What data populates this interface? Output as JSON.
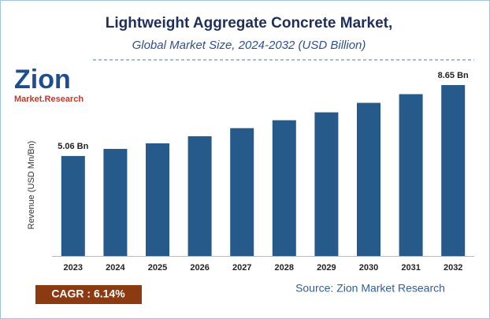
{
  "chart_data": {
    "type": "bar",
    "title": "Lightweight Aggregate Concrete Market,",
    "subtitle": "Global Market Size, 2024-2032 (USD Billion)",
    "y_label": "Revenue (USD Mn/Bn)",
    "categories": [
      "2023",
      "2024",
      "2025",
      "2026",
      "2027",
      "2028",
      "2029",
      "2030",
      "2031",
      "2032"
    ],
    "values": [
      5.06,
      5.42,
      5.7,
      6.06,
      6.47,
      6.87,
      7.27,
      7.75,
      8.19,
      8.65
    ],
    "value_labels": [
      "5.06 Bn",
      null,
      null,
      null,
      null,
      null,
      null,
      null,
      null,
      "8.65 Bn"
    ],
    "color": "#255a8a",
    "cagr": "CAGR : 6.14%",
    "source": "Source: Zion Market Research",
    "logo": {
      "name": "Zion",
      "tagline": "Market.Research"
    }
  }
}
